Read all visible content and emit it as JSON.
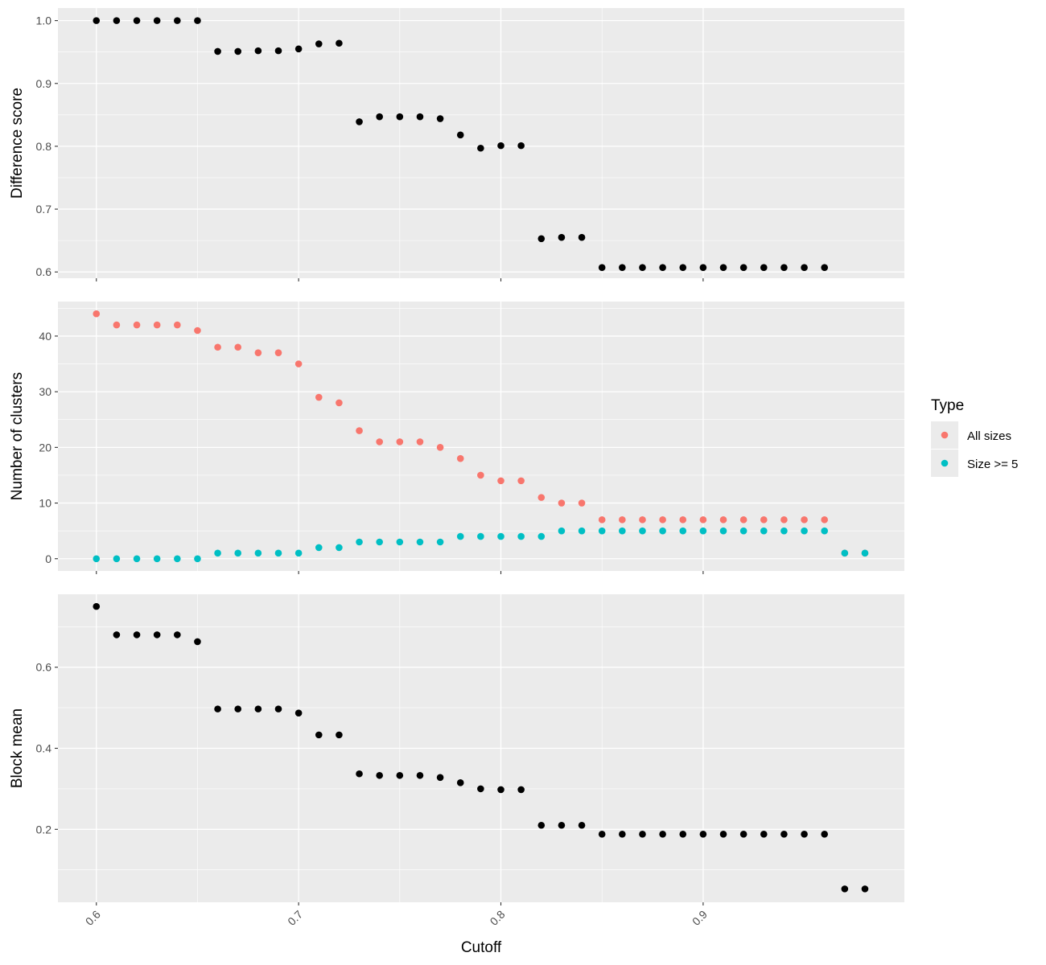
{
  "chart_data": [
    {
      "type": "scatter",
      "panel": "difference-score",
      "ylabel": "Difference score",
      "xlabel": "",
      "ylim": [
        0.59,
        1.02
      ],
      "yticks": [
        0.6,
        0.7,
        0.8,
        0.9,
        1.0
      ],
      "ytick_labels": [
        "0.6",
        "0.7",
        "0.8",
        "0.9",
        "1.0"
      ],
      "grid": true,
      "series": [
        {
          "color": "#000000",
          "points": [
            [
              0.6,
              1.0
            ],
            [
              0.61,
              1.0
            ],
            [
              0.62,
              1.0
            ],
            [
              0.63,
              1.0
            ],
            [
              0.64,
              1.0
            ],
            [
              0.65,
              1.0
            ],
            [
              0.66,
              0.951
            ],
            [
              0.67,
              0.951
            ],
            [
              0.68,
              0.952
            ],
            [
              0.69,
              0.952
            ],
            [
              0.7,
              0.955
            ],
            [
              0.71,
              0.963
            ],
            [
              0.72,
              0.964
            ],
            [
              0.73,
              0.839
            ],
            [
              0.74,
              0.847
            ],
            [
              0.75,
              0.847
            ],
            [
              0.76,
              0.847
            ],
            [
              0.77,
              0.844
            ],
            [
              0.78,
              0.818
            ],
            [
              0.79,
              0.797
            ],
            [
              0.8,
              0.801
            ],
            [
              0.81,
              0.801
            ],
            [
              0.82,
              0.653
            ],
            [
              0.83,
              0.655
            ],
            [
              0.84,
              0.655
            ],
            [
              0.85,
              0.607
            ],
            [
              0.86,
              0.607
            ],
            [
              0.87,
              0.607
            ],
            [
              0.88,
              0.607
            ],
            [
              0.89,
              0.607
            ],
            [
              0.9,
              0.607
            ],
            [
              0.91,
              0.607
            ],
            [
              0.92,
              0.607
            ],
            [
              0.93,
              0.607
            ],
            [
              0.94,
              0.607
            ],
            [
              0.95,
              0.607
            ],
            [
              0.96,
              0.607
            ]
          ]
        }
      ]
    },
    {
      "type": "scatter",
      "panel": "number-of-clusters",
      "ylabel": "Number of clusters",
      "xlabel": "",
      "ylim": [
        -2.2,
        46.2
      ],
      "yticks": [
        0,
        10,
        20,
        30,
        40
      ],
      "ytick_labels": [
        "0",
        "10",
        "20",
        "30",
        "40"
      ],
      "grid": true,
      "legend": {
        "title": "Type",
        "placement": "right"
      },
      "series": [
        {
          "name": "All sizes",
          "color": "#F8766D",
          "points": [
            [
              0.6,
              44
            ],
            [
              0.61,
              42
            ],
            [
              0.62,
              42
            ],
            [
              0.63,
              42
            ],
            [
              0.64,
              42
            ],
            [
              0.65,
              41
            ],
            [
              0.66,
              38
            ],
            [
              0.67,
              38
            ],
            [
              0.68,
              37
            ],
            [
              0.69,
              37
            ],
            [
              0.7,
              35
            ],
            [
              0.71,
              29
            ],
            [
              0.72,
              28
            ],
            [
              0.73,
              23
            ],
            [
              0.74,
              21
            ],
            [
              0.75,
              21
            ],
            [
              0.76,
              21
            ],
            [
              0.77,
              20
            ],
            [
              0.78,
              18
            ],
            [
              0.79,
              15
            ],
            [
              0.8,
              14
            ],
            [
              0.81,
              14
            ],
            [
              0.82,
              11
            ],
            [
              0.83,
              10
            ],
            [
              0.84,
              10
            ],
            [
              0.85,
              7
            ],
            [
              0.86,
              7
            ],
            [
              0.87,
              7
            ],
            [
              0.88,
              7
            ],
            [
              0.89,
              7
            ],
            [
              0.9,
              7
            ],
            [
              0.91,
              7
            ],
            [
              0.92,
              7
            ],
            [
              0.93,
              7
            ],
            [
              0.94,
              7
            ],
            [
              0.95,
              7
            ],
            [
              0.96,
              7
            ],
            [
              0.97,
              1
            ],
            [
              0.98,
              1
            ]
          ]
        },
        {
          "name": "Size >= 5",
          "color": "#00BFC4",
          "points": [
            [
              0.6,
              0
            ],
            [
              0.61,
              0
            ],
            [
              0.62,
              0
            ],
            [
              0.63,
              0
            ],
            [
              0.64,
              0
            ],
            [
              0.65,
              0
            ],
            [
              0.66,
              1
            ],
            [
              0.67,
              1
            ],
            [
              0.68,
              1
            ],
            [
              0.69,
              1
            ],
            [
              0.7,
              1
            ],
            [
              0.71,
              2
            ],
            [
              0.72,
              2
            ],
            [
              0.73,
              3
            ],
            [
              0.74,
              3
            ],
            [
              0.75,
              3
            ],
            [
              0.76,
              3
            ],
            [
              0.77,
              3
            ],
            [
              0.78,
              4
            ],
            [
              0.79,
              4
            ],
            [
              0.8,
              4
            ],
            [
              0.81,
              4
            ],
            [
              0.82,
              4
            ],
            [
              0.83,
              5
            ],
            [
              0.84,
              5
            ],
            [
              0.85,
              5
            ],
            [
              0.86,
              5
            ],
            [
              0.87,
              5
            ],
            [
              0.88,
              5
            ],
            [
              0.89,
              5
            ],
            [
              0.9,
              5
            ],
            [
              0.91,
              5
            ],
            [
              0.92,
              5
            ],
            [
              0.93,
              5
            ],
            [
              0.94,
              5
            ],
            [
              0.95,
              5
            ],
            [
              0.96,
              5
            ],
            [
              0.97,
              1
            ],
            [
              0.98,
              1
            ]
          ]
        }
      ]
    },
    {
      "type": "scatter",
      "panel": "block-mean",
      "ylabel": "Block mean",
      "xlabel": "Cutoff",
      "ylim": [
        0.02,
        0.78
      ],
      "yticks": [
        0.2,
        0.4,
        0.6
      ],
      "ytick_labels": [
        "0.2",
        "0.4",
        "0.6"
      ],
      "grid": true,
      "series": [
        {
          "color": "#000000",
          "points": [
            [
              0.6,
              0.75
            ],
            [
              0.61,
              0.68
            ],
            [
              0.62,
              0.68
            ],
            [
              0.63,
              0.68
            ],
            [
              0.64,
              0.68
            ],
            [
              0.65,
              0.663
            ],
            [
              0.66,
              0.497
            ],
            [
              0.67,
              0.497
            ],
            [
              0.68,
              0.497
            ],
            [
              0.69,
              0.497
            ],
            [
              0.7,
              0.487
            ],
            [
              0.71,
              0.433
            ],
            [
              0.72,
              0.433
            ],
            [
              0.73,
              0.337
            ],
            [
              0.74,
              0.333
            ],
            [
              0.75,
              0.333
            ],
            [
              0.76,
              0.333
            ],
            [
              0.77,
              0.328
            ],
            [
              0.78,
              0.315
            ],
            [
              0.79,
              0.3
            ],
            [
              0.8,
              0.298
            ],
            [
              0.81,
              0.298
            ],
            [
              0.82,
              0.21
            ],
            [
              0.83,
              0.21
            ],
            [
              0.84,
              0.21
            ],
            [
              0.85,
              0.188
            ],
            [
              0.86,
              0.188
            ],
            [
              0.87,
              0.188
            ],
            [
              0.88,
              0.188
            ],
            [
              0.89,
              0.188
            ],
            [
              0.9,
              0.188
            ],
            [
              0.91,
              0.188
            ],
            [
              0.92,
              0.188
            ],
            [
              0.93,
              0.188
            ],
            [
              0.94,
              0.188
            ],
            [
              0.95,
              0.188
            ],
            [
              0.96,
              0.188
            ],
            [
              0.97,
              0.053
            ],
            [
              0.98,
              0.053
            ]
          ]
        }
      ]
    }
  ],
  "x_axis": {
    "title": "Cutoff",
    "xlim": [
      0.581,
      0.9995
    ],
    "ticks": [
      0.6,
      0.7,
      0.8,
      0.9
    ],
    "tick_labels": [
      "0.6",
      "0.7",
      "0.8",
      "0.9"
    ]
  },
  "colors": {
    "panel_background": "#EBEBEB",
    "grid_major": "#FFFFFF",
    "points_default": "#000000",
    "all_sizes": "#F8766D",
    "size_ge_5": "#00BFC4"
  }
}
